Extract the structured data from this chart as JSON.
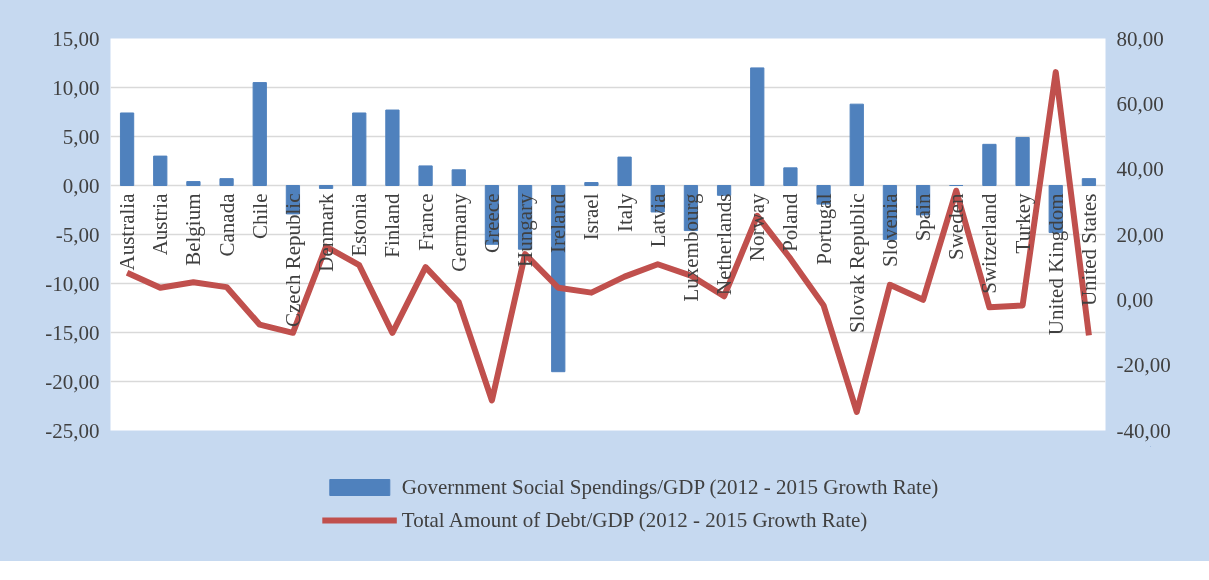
{
  "chart_data": {
    "type": "bar",
    "categories": [
      "Australia",
      "Austria",
      "Belgium",
      "Canada",
      "Chile",
      "Czech Republic",
      "Denmark",
      "Estonia",
      "Finland",
      "France",
      "Germany",
      "Greece",
      "Hungary",
      "Ireland",
      "Israel",
      "Italy",
      "Latvia",
      "Luxembourg",
      "Netherlands",
      "Norway",
      "Poland",
      "Portugal",
      "Slovak Republic",
      "Slovenia",
      "Spain",
      "Sweden",
      "Switzerland",
      "Turkey",
      "United Kingdom",
      "United States"
    ],
    "series": [
      {
        "name": "Government Social Spendings/GDP (2012 - 2015 Growth Rate)",
        "type": "bar",
        "color": "#4f81bd",
        "values": [
          7.4,
          3.0,
          0.4,
          0.7,
          10.5,
          -2.9,
          -0.3,
          7.4,
          7.7,
          2.0,
          1.6,
          -6.0,
          -6.5,
          -19.0,
          0.3,
          2.9,
          -2.7,
          -4.6,
          -1.0,
          12.0,
          1.8,
          -1.9,
          8.3,
          -5.5,
          -3.0,
          0,
          4.2,
          4.9,
          -4.8,
          0.7
        ]
      },
      {
        "name": "Total Amount of Debt/GDP (2012 - 2015 Growth Rate)",
        "type": "line",
        "axis": "y2",
        "color": "#c0504d",
        "values": [
          8.3,
          3.7,
          5.4,
          3.9,
          -7.6,
          -10.1,
          16.3,
          10.6,
          -10.1,
          10.0,
          -0.7,
          -30.8,
          14.0,
          3.7,
          2.2,
          7.1,
          10.9,
          7.4,
          1.1,
          25.7,
          12.6,
          -1.7,
          -34.3,
          4.6,
          0,
          33.4,
          -2.3,
          -1.7,
          69.7,
          -10.9
        ]
      }
    ],
    "ylim": [
      -25,
      15
    ],
    "yticks": [
      {
        "value": -25,
        "label": "-25,00"
      },
      {
        "value": -20,
        "label": "-20,00"
      },
      {
        "value": -15,
        "label": "-15,00"
      },
      {
        "value": -10,
        "label": "-10,00"
      },
      {
        "value": -5,
        "label": "-5,00"
      },
      {
        "value": 0,
        "label": "0,00"
      },
      {
        "value": 5,
        "label": "5,00"
      },
      {
        "value": 10,
        "label": "10,00"
      },
      {
        "value": 15,
        "label": "15,00"
      }
    ],
    "y2lim": [
      -40,
      80
    ],
    "y2ticks": [
      {
        "value": -40,
        "label": "-40,00"
      },
      {
        "value": -20,
        "label": "-20,00"
      },
      {
        "value": 0,
        "label": "0,00"
      },
      {
        "value": 20,
        "label": "20,00"
      },
      {
        "value": 40,
        "label": "40,00"
      },
      {
        "value": 60,
        "label": "60,00"
      },
      {
        "value": 80,
        "label": "80,00"
      }
    ],
    "grid": "y",
    "legend": "bottom",
    "marker": "none",
    "line_style": "solid"
  }
}
